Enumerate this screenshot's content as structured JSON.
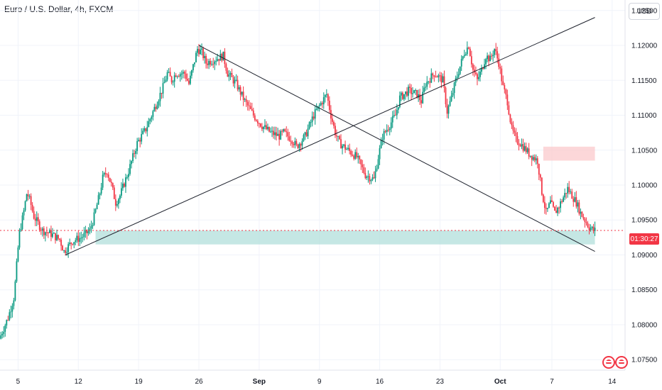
{
  "header": {
    "symbol_title": "Euro / U.S. Dollar, 4h, FXCM"
  },
  "axis": {
    "currency": "USD"
  },
  "last_price_tag": "01:30:27",
  "colors": {
    "up": "#089981",
    "down": "#f23645",
    "support_zone": "#b2dfdb",
    "resistance_zone": "#fbc9cc",
    "trendline": "#1e222d",
    "grid": "#f0f3fa"
  },
  "icons": [
    "economic-event-icon",
    "economic-event-icon"
  ],
  "chart_data": {
    "type": "candlestick",
    "timeframe": "4h",
    "y_axis": {
      "ticks": [
        "1.12500",
        "1.12000",
        "1.11500",
        "1.11000",
        "1.10500",
        "1.10000",
        "1.09500",
        "1.09000",
        "1.08500",
        "1.08000",
        "1.07500"
      ],
      "ylim": [
        1.0735,
        1.1265
      ]
    },
    "x_axis": {
      "ticks": [
        {
          "label": "5",
          "day": 0,
          "bold": false
        },
        {
          "label": "12",
          "day": 7,
          "bold": false
        },
        {
          "label": "19",
          "day": 14,
          "bold": false
        },
        {
          "label": "26",
          "day": 21,
          "bold": false
        },
        {
          "label": "Sep",
          "day": 28,
          "bold": true
        },
        {
          "label": "9",
          "day": 35,
          "bold": false
        },
        {
          "label": "16",
          "day": 42,
          "bold": false
        },
        {
          "label": "23",
          "day": 49,
          "bold": false
        },
        {
          "label": "Oct",
          "day": 56,
          "bold": true
        },
        {
          "label": "7",
          "day": 62,
          "bold": false
        },
        {
          "label": "14",
          "day": 69,
          "bold": false
        }
      ],
      "xlim_days": [
        -2.1,
        70.5
      ]
    },
    "price_path": [
      [
        -2.0,
        1.078
      ],
      [
        -1.0,
        1.081
      ],
      [
        -0.3,
        1.084
      ],
      [
        0.3,
        1.093
      ],
      [
        0.8,
        1.096
      ],
      [
        1.2,
        1.099
      ],
      [
        1.6,
        1.0975
      ],
      [
        2.0,
        1.0955
      ],
      [
        3.0,
        1.0935
      ],
      [
        4.0,
        1.093
      ],
      [
        5.0,
        1.0922
      ],
      [
        5.5,
        1.0905
      ],
      [
        6.5,
        1.092
      ],
      [
        7.5,
        1.0925
      ],
      [
        8.5,
        1.0935
      ],
      [
        9.0,
        1.0955
      ],
      [
        9.6,
        1.0985
      ],
      [
        10.0,
        1.101
      ],
      [
        10.5,
        1.102
      ],
      [
        11.0,
        1.1
      ],
      [
        11.5,
        1.0975
      ],
      [
        12.0,
        1.0985
      ],
      [
        13.0,
        1.102
      ],
      [
        14.0,
        1.106
      ],
      [
        15.0,
        1.108
      ],
      [
        16.0,
        1.111
      ],
      [
        17.0,
        1.114
      ],
      [
        17.5,
        1.116
      ],
      [
        18.0,
        1.115
      ],
      [
        18.5,
        1.116
      ],
      [
        19.5,
        1.116
      ],
      [
        20.0,
        1.1145
      ],
      [
        20.5,
        1.117
      ],
      [
        21.0,
        1.1195
      ],
      [
        21.5,
        1.119
      ],
      [
        22.0,
        1.1175
      ],
      [
        23.0,
        1.118
      ],
      [
        24.0,
        1.1185
      ],
      [
        24.5,
        1.116
      ],
      [
        25.5,
        1.1145
      ],
      [
        26.5,
        1.112
      ],
      [
        27.5,
        1.11
      ],
      [
        28.5,
        1.1085
      ],
      [
        29.5,
        1.1075
      ],
      [
        30.5,
        1.107
      ],
      [
        31.0,
        1.1075
      ],
      [
        32.0,
        1.1065
      ],
      [
        32.5,
        1.1055
      ],
      [
        33.5,
        1.107
      ],
      [
        34.5,
        1.11
      ],
      [
        35.5,
        1.112
      ],
      [
        36.0,
        1.113
      ],
      [
        36.5,
        1.11
      ],
      [
        37.0,
        1.1075
      ],
      [
        37.5,
        1.106
      ],
      [
        38.5,
        1.105
      ],
      [
        39.5,
        1.104
      ],
      [
        40.5,
        1.1015
      ],
      [
        41.5,
        1.1008
      ],
      [
        42.0,
        1.104
      ],
      [
        42.5,
        1.107
      ],
      [
        43.5,
        1.109
      ],
      [
        44.0,
        1.11
      ],
      [
        44.5,
        1.1125
      ],
      [
        45.5,
        1.1135
      ],
      [
        46.5,
        1.113
      ],
      [
        47.0,
        1.112
      ],
      [
        47.5,
        1.1145
      ],
      [
        48.5,
        1.116
      ],
      [
        49.5,
        1.115
      ],
      [
        50.0,
        1.1105
      ],
      [
        50.5,
        1.1125
      ],
      [
        51.0,
        1.115
      ],
      [
        52.0,
        1.119
      ],
      [
        52.5,
        1.12
      ],
      [
        53.0,
        1.1165
      ],
      [
        53.5,
        1.115
      ],
      [
        54.0,
        1.1165
      ],
      [
        54.5,
        1.1185
      ],
      [
        55.0,
        1.118
      ],
      [
        55.5,
        1.1195
      ],
      [
        56.0,
        1.1175
      ],
      [
        56.5,
        1.114
      ],
      [
        57.0,
        1.112
      ],
      [
        57.5,
        1.108
      ],
      [
        58.0,
        1.1065
      ],
      [
        58.5,
        1.106
      ],
      [
        59.5,
        1.1045
      ],
      [
        60.5,
        1.1035
      ],
      [
        61.0,
        1.099
      ],
      [
        61.5,
        1.096
      ],
      [
        62.0,
        1.0975
      ],
      [
        62.5,
        1.096
      ],
      [
        63.0,
        1.097
      ],
      [
        64.0,
        1.0995
      ],
      [
        64.5,
        1.0985
      ],
      [
        65.0,
        1.0975
      ],
      [
        65.5,
        1.096
      ],
      [
        66.0,
        1.095
      ],
      [
        66.5,
        1.094
      ],
      [
        67.0,
        1.0935
      ]
    ],
    "trendlines": [
      {
        "from": [
          5.5,
          1.09
        ],
        "to": [
          67.0,
          1.124
        ]
      },
      {
        "from": [
          21.0,
          1.12
        ],
        "to": [
          67.0,
          1.0905
        ]
      }
    ],
    "zones": [
      {
        "name": "support",
        "from_day": 9.0,
        "to_day": 67.0,
        "low": 1.0915,
        "high": 1.0935
      },
      {
        "name": "resistance",
        "from_day": 61.0,
        "to_day": 67.0,
        "low": 1.1035,
        "high": 1.1055
      }
    ],
    "current_price": 1.0935
  }
}
